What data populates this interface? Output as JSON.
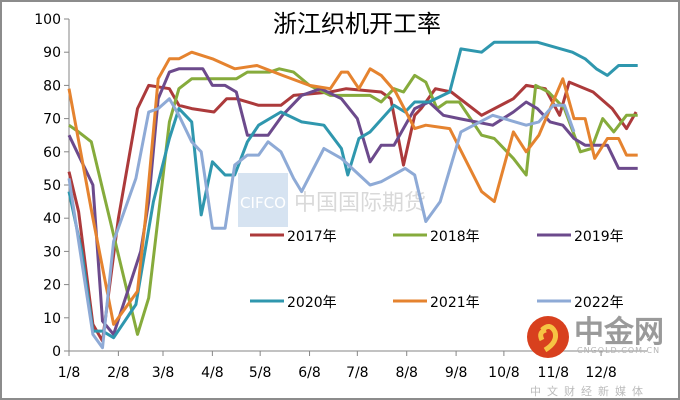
{
  "chart_data": {
    "type": "line",
    "title": "浙江织机开工率",
    "xlabel": "",
    "ylabel": "",
    "ylim": [
      0,
      100
    ],
    "yticks": [
      "0",
      "10",
      "20",
      "30",
      "40",
      "50",
      "60",
      "70",
      "80",
      "90",
      "100"
    ],
    "xticks": [
      {
        "label": "1/8",
        "date": "01-08"
      },
      {
        "label": "2/8",
        "date": "02-08"
      },
      {
        "label": "3/8",
        "date": "03-08"
      },
      {
        "label": "4/8",
        "date": "04-08"
      },
      {
        "label": "5/8",
        "date": "05-08"
      },
      {
        "label": "6/8",
        "date": "06-08"
      },
      {
        "label": "7/8",
        "date": "07-08"
      },
      {
        "label": "8/8",
        "date": "08-08"
      },
      {
        "label": "9/8",
        "date": "09-08"
      },
      {
        "label": "10/8",
        "date": "10-08"
      },
      {
        "label": "11/8",
        "date": "11-08"
      },
      {
        "label": "12/8",
        "date": "12-08"
      }
    ],
    "grid": false,
    "legend_placement": "inside-center",
    "series": [
      {
        "name": "2017年",
        "color": "#ac3a3b",
        "points": [
          [
            "01-08",
            54
          ],
          [
            "01-14",
            42
          ],
          [
            "01-23",
            8
          ],
          [
            "01-29",
            3
          ],
          [
            "02-08",
            40
          ],
          [
            "02-20",
            73
          ],
          [
            "02-27",
            80
          ],
          [
            "03-12",
            79
          ],
          [
            "03-18",
            74
          ],
          [
            "03-26",
            73
          ],
          [
            "04-09",
            72
          ],
          [
            "04-17",
            76
          ],
          [
            "04-23",
            76
          ],
          [
            "05-07",
            74
          ],
          [
            "05-21",
            74
          ],
          [
            "05-29",
            77
          ],
          [
            "06-21",
            78
          ],
          [
            "07-01",
            79
          ],
          [
            "07-23",
            78
          ],
          [
            "07-29",
            76
          ],
          [
            "08-06",
            56
          ],
          [
            "08-13",
            71
          ],
          [
            "08-17",
            73
          ],
          [
            "08-26",
            79
          ],
          [
            "09-05",
            78
          ],
          [
            "09-24",
            71
          ],
          [
            "10-14",
            76
          ],
          [
            "10-22",
            80
          ],
          [
            "11-03",
            79
          ],
          [
            "11-12",
            71
          ],
          [
            "11-18",
            81
          ],
          [
            "12-03",
            78
          ],
          [
            "12-15",
            73
          ],
          [
            "12-24",
            67
          ],
          [
            "12-30",
            72
          ]
        ]
      },
      {
        "name": "2018年",
        "color": "#86ab3c",
        "points": [
          [
            "01-08",
            68
          ],
          [
            "01-14",
            66
          ],
          [
            "01-22",
            63
          ],
          [
            "01-30",
            47
          ],
          [
            "02-20",
            5
          ],
          [
            "02-27",
            16
          ],
          [
            "03-12",
            69
          ],
          [
            "03-18",
            79
          ],
          [
            "03-26",
            82
          ],
          [
            "04-23",
            82
          ],
          [
            "04-30",
            84
          ],
          [
            "05-14",
            84
          ],
          [
            "05-20",
            85
          ],
          [
            "05-29",
            84
          ],
          [
            "06-08",
            80
          ],
          [
            "06-21",
            77
          ],
          [
            "07-16",
            77
          ],
          [
            "07-23",
            75
          ],
          [
            "07-31",
            79
          ],
          [
            "08-06",
            78
          ],
          [
            "08-13",
            83
          ],
          [
            "08-20",
            81
          ],
          [
            "08-27",
            73
          ],
          [
            "09-02",
            75
          ],
          [
            "09-10",
            75
          ],
          [
            "09-24",
            65
          ],
          [
            "10-02",
            64
          ],
          [
            "10-14",
            58
          ],
          [
            "10-22",
            53
          ],
          [
            "10-28",
            80
          ],
          [
            "11-05",
            78
          ],
          [
            "11-15",
            73
          ],
          [
            "11-25",
            60
          ],
          [
            "12-02",
            61
          ],
          [
            "12-09",
            70
          ],
          [
            "12-16",
            66
          ],
          [
            "12-24",
            71
          ],
          [
            "12-31",
            71
          ]
        ]
      },
      {
        "name": "2019年",
        "color": "#6c4a8c",
        "points": [
          [
            "01-08",
            65
          ],
          [
            "01-23",
            50
          ],
          [
            "01-29",
            9
          ],
          [
            "02-05",
            5
          ],
          [
            "02-22",
            30
          ],
          [
            "02-27",
            45
          ],
          [
            "03-05",
            76
          ],
          [
            "03-12",
            84
          ],
          [
            "03-18",
            85
          ],
          [
            "04-02",
            85
          ],
          [
            "04-08",
            80
          ],
          [
            "04-16",
            80
          ],
          [
            "04-23",
            78
          ],
          [
            "04-30",
            65
          ],
          [
            "05-13",
            65
          ],
          [
            "05-22",
            71
          ],
          [
            "06-03",
            77
          ],
          [
            "06-15",
            79
          ],
          [
            "06-28",
            76
          ],
          [
            "07-08",
            70
          ],
          [
            "07-16",
            57
          ],
          [
            "07-23",
            62
          ],
          [
            "07-31",
            62
          ],
          [
            "08-13",
            73
          ],
          [
            "08-22",
            75
          ],
          [
            "08-31",
            71
          ],
          [
            "09-10",
            70
          ],
          [
            "10-01",
            68
          ],
          [
            "10-14",
            72
          ],
          [
            "10-22",
            75
          ],
          [
            "10-29",
            73
          ],
          [
            "11-06",
            69
          ],
          [
            "11-14",
            68
          ],
          [
            "11-21",
            64
          ],
          [
            "11-28",
            62
          ],
          [
            "12-12",
            62
          ],
          [
            "12-19",
            55
          ],
          [
            "12-31",
            55
          ]
        ]
      },
      {
        "name": "2020年",
        "color": "#2f97ae",
        "points": [
          [
            "01-08",
            48
          ],
          [
            "01-16",
            30
          ],
          [
            "01-23",
            6
          ],
          [
            "01-29",
            6
          ],
          [
            "02-05",
            4
          ],
          [
            "02-19",
            14
          ],
          [
            "03-02",
            45
          ],
          [
            "03-12",
            64
          ],
          [
            "03-18",
            73
          ],
          [
            "03-26",
            69
          ],
          [
            "04-01",
            41
          ],
          [
            "04-08",
            57
          ],
          [
            "04-16",
            53
          ],
          [
            "04-22",
            53
          ],
          [
            "04-30",
            63
          ],
          [
            "05-07",
            68
          ],
          [
            "05-21",
            72
          ],
          [
            "06-03",
            69
          ],
          [
            "06-17",
            68
          ],
          [
            "06-28",
            61
          ],
          [
            "07-02",
            53
          ],
          [
            "07-09",
            64
          ],
          [
            "07-16",
            66
          ],
          [
            "07-31",
            74
          ],
          [
            "08-07",
            72
          ],
          [
            "08-13",
            75
          ],
          [
            "08-22",
            75
          ],
          [
            "09-04",
            78
          ],
          [
            "09-11",
            91
          ],
          [
            "09-24",
            90
          ],
          [
            "10-02",
            93
          ],
          [
            "10-29",
            93
          ],
          [
            "11-20",
            90
          ],
          [
            "11-28",
            88
          ],
          [
            "12-05",
            85
          ],
          [
            "12-12",
            83
          ],
          [
            "12-19",
            86
          ],
          [
            "12-31",
            86
          ]
        ]
      },
      {
        "name": "2021年",
        "color": "#e5832f",
        "points": [
          [
            "01-08",
            79
          ],
          [
            "01-23",
            40
          ],
          [
            "02-05",
            8
          ],
          [
            "02-20",
            18
          ],
          [
            "02-25",
            40
          ],
          [
            "03-05",
            82
          ],
          [
            "03-12",
            88
          ],
          [
            "03-18",
            88
          ],
          [
            "03-26",
            90
          ],
          [
            "04-08",
            88
          ],
          [
            "04-22",
            85
          ],
          [
            "05-06",
            86
          ],
          [
            "05-22",
            83
          ],
          [
            "06-08",
            80
          ],
          [
            "06-21",
            79
          ],
          [
            "06-28",
            84
          ],
          [
            "07-02",
            84
          ],
          [
            "07-09",
            79
          ],
          [
            "07-16",
            85
          ],
          [
            "07-23",
            83
          ],
          [
            "08-01",
            78
          ],
          [
            "08-13",
            67
          ],
          [
            "08-20",
            68
          ],
          [
            "09-04",
            67
          ],
          [
            "09-24",
            48
          ],
          [
            "10-02",
            45
          ],
          [
            "10-14",
            66
          ],
          [
            "10-22",
            60
          ],
          [
            "10-30",
            65
          ],
          [
            "11-14",
            82
          ],
          [
            "11-21",
            70
          ],
          [
            "11-28",
            70
          ],
          [
            "12-04",
            58
          ],
          [
            "12-12",
            64
          ],
          [
            "12-19",
            64
          ],
          [
            "12-24",
            59
          ],
          [
            "12-31",
            59
          ]
        ]
      },
      {
        "name": "2022年",
        "color": "#8eaad6",
        "points": [
          [
            "01-08",
            52
          ],
          [
            "01-23",
            5
          ],
          [
            "01-29",
            1
          ],
          [
            "02-05",
            33
          ],
          [
            "02-19",
            52
          ],
          [
            "02-27",
            72
          ],
          [
            "03-05",
            73
          ],
          [
            "03-12",
            76
          ],
          [
            "03-18",
            71
          ],
          [
            "03-26",
            63
          ],
          [
            "04-01",
            60
          ],
          [
            "04-08",
            37
          ],
          [
            "04-16",
            37
          ],
          [
            "04-22",
            56
          ],
          [
            "04-30",
            59
          ],
          [
            "05-07",
            59
          ],
          [
            "05-13",
            63
          ],
          [
            "05-21",
            60
          ],
          [
            "05-29",
            52
          ],
          [
            "06-03",
            48
          ],
          [
            "06-17",
            61
          ],
          [
            "06-28",
            58
          ],
          [
            "07-16",
            50
          ],
          [
            "07-23",
            51
          ],
          [
            "08-07",
            55
          ],
          [
            "08-13",
            53
          ],
          [
            "08-20",
            39
          ],
          [
            "08-29",
            45
          ],
          [
            "09-11",
            66
          ],
          [
            "10-01",
            71
          ],
          [
            "10-22",
            68
          ],
          [
            "10-30",
            69
          ],
          [
            "11-08",
            74
          ],
          [
            "11-15",
            74
          ],
          [
            "11-21",
            66
          ]
        ]
      }
    ]
  },
  "watermarks": {
    "cifco": "CIFCO",
    "cifco_cn": "中国国际期货",
    "brand": "中金网",
    "brand_url": "CNGOLD.COM.CN",
    "brand_tagline": "中文财经新媒体"
  }
}
